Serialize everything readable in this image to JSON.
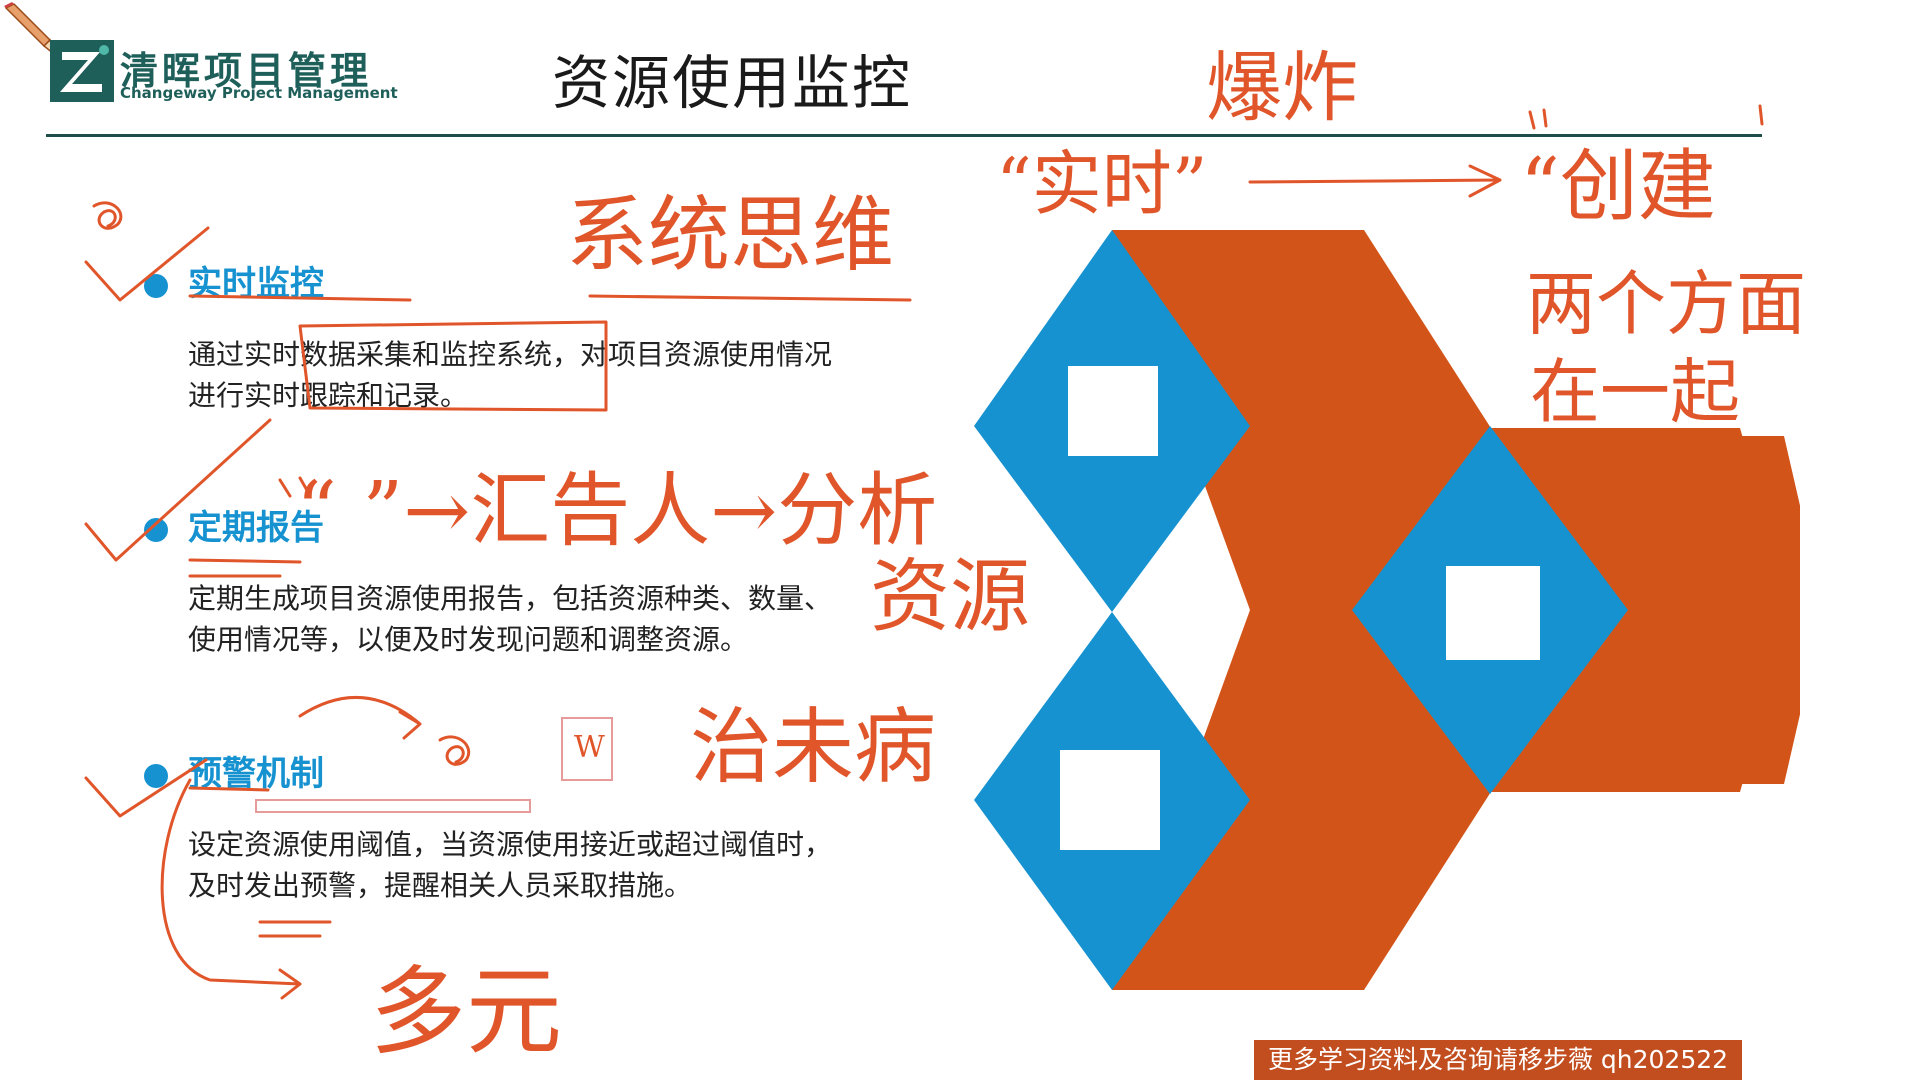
{
  "header": {
    "logo_name": "清晖项目管理",
    "logo_subtitle": "Changeway Project Management",
    "title": "资源使用监控"
  },
  "sections": [
    {
      "title": "实时监控",
      "desc_lines": [
        "通过实时数据采集和监控系统，对项目资源使用情况",
        "进行实时跟踪和记录。"
      ]
    },
    {
      "title": "定期报告",
      "desc_lines": [
        "定期生成项目资源使用报告，包括资源种类、数量、",
        "使用情况等，以便及时发现问题和调整资源。"
      ]
    },
    {
      "title": "预警机制",
      "desc_lines": [
        "设定资源使用阈值，当资源使用接近或超过阈值时，",
        "及时发出预警，提醒相关人员采取措施。"
      ]
    }
  ],
  "annotations": {
    "systems_thinking": "系统思维",
    "realtime_quote": "“实时”",
    "top_note": "爆炸",
    "creation": "“创建",
    "two_sides": "两个方面",
    "together": "在一起",
    "summary_flow": "“ ”→汇告人→分析",
    "resources": "资源",
    "treat_illness": "治未病",
    "multiple": "多元",
    "small_box": "W"
  },
  "footer": {
    "text": "更多学习资料及咨询请移步薇    qh202522"
  },
  "colors": {
    "accent_blue": "#1692d0",
    "accent_orange": "#d35418",
    "logo_teal": "#1e5f5a",
    "ink": "#e0562a",
    "footer_bg": "#c24e1f"
  },
  "icons": [
    "pen-icon",
    "logo-mark",
    "bullet-dot"
  ]
}
